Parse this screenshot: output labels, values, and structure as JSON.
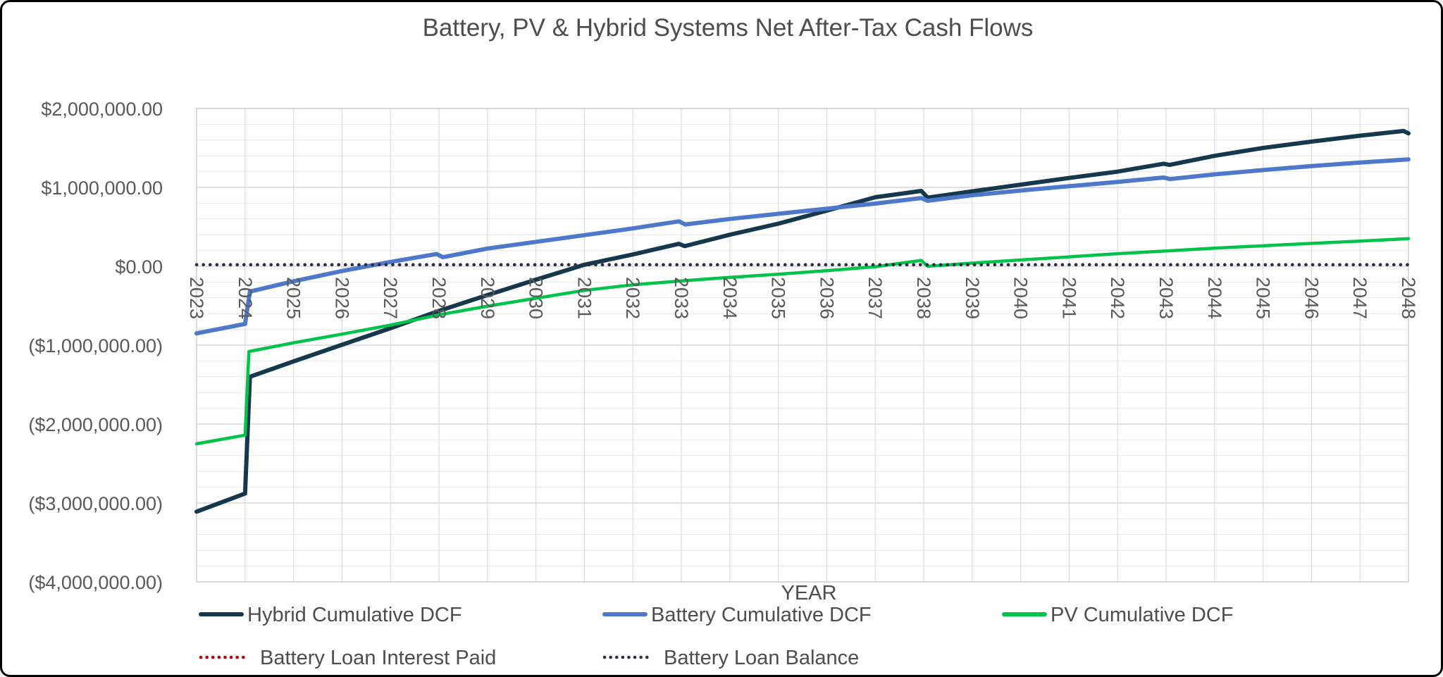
{
  "chart_data": {
    "type": "line",
    "title": "Battery, PV & Hybrid Systems Net After-Tax Cash Flows",
    "xlabel": "YEAR",
    "ylabel": "",
    "ylim": [
      -4000000,
      2000000
    ],
    "y_major_step": 1000000,
    "y_minor_step": 200000,
    "grid": "major-and-minor",
    "legend_position": "bottom",
    "x_ticks": [
      2023,
      2024,
      2025,
      2026,
      2027,
      2028,
      2029,
      2030,
      2031,
      2032,
      2033,
      2034,
      2035,
      2036,
      2037,
      2038,
      2039,
      2040,
      2041,
      2042,
      2043,
      2044,
      2045,
      2046,
      2047,
      2048
    ],
    "y_ticks": [
      {
        "value": 2000000,
        "label": "$2,000,000.00"
      },
      {
        "value": 1000000,
        "label": "$1,000,000.00"
      },
      {
        "value": 0,
        "label": "$0.00"
      },
      {
        "value": -1000000,
        "label": "($1,000,000.00)"
      },
      {
        "value": -2000000,
        "label": "($2,000,000.00)"
      },
      {
        "value": -3000000,
        "label": "($3,000,000.00)"
      },
      {
        "value": -4000000,
        "label": "($4,000,000.00)"
      }
    ],
    "series": [
      {
        "name": "Hybrid Cumulative DCF",
        "color": "#16384C",
        "style": "solid",
        "width": 6,
        "points": [
          [
            2023,
            -3110000
          ],
          [
            2024.0,
            -2880000
          ],
          [
            2024.1,
            -1400000
          ],
          [
            2025,
            -1205000
          ],
          [
            2026,
            -995000
          ],
          [
            2027,
            -785000
          ],
          [
            2028,
            -565000
          ],
          [
            2029,
            -365000
          ],
          [
            2030,
            -170000
          ],
          [
            2031,
            20000
          ],
          [
            2032,
            150000
          ],
          [
            2032.95,
            285000
          ],
          [
            2033.07,
            255000
          ],
          [
            2034,
            400000
          ],
          [
            2035,
            540000
          ],
          [
            2036,
            705000
          ],
          [
            2037,
            875000
          ],
          [
            2037.95,
            955000
          ],
          [
            2038.08,
            870000
          ],
          [
            2039,
            950000
          ],
          [
            2040,
            1035000
          ],
          [
            2041,
            1120000
          ],
          [
            2042,
            1200000
          ],
          [
            2042.95,
            1300000
          ],
          [
            2043.07,
            1285000
          ],
          [
            2044,
            1400000
          ],
          [
            2045,
            1500000
          ],
          [
            2046,
            1580000
          ],
          [
            2047,
            1655000
          ],
          [
            2047.9,
            1715000
          ],
          [
            2048,
            1685000
          ]
        ]
      },
      {
        "name": "Battery Cumulative DCF",
        "color": "#4E79CB",
        "style": "solid",
        "width": 6,
        "points": [
          [
            2023,
            -850000
          ],
          [
            2024.0,
            -730000
          ],
          [
            2024.1,
            -320000
          ],
          [
            2025,
            -190000
          ],
          [
            2026,
            -60000
          ],
          [
            2027,
            55000
          ],
          [
            2027.95,
            155000
          ],
          [
            2028.08,
            115000
          ],
          [
            2029,
            225000
          ],
          [
            2030,
            310000
          ],
          [
            2031,
            395000
          ],
          [
            2032,
            480000
          ],
          [
            2032.95,
            570000
          ],
          [
            2033.08,
            530000
          ],
          [
            2034,
            600000
          ],
          [
            2035,
            665000
          ],
          [
            2036,
            730000
          ],
          [
            2037,
            795000
          ],
          [
            2037.95,
            865000
          ],
          [
            2038.08,
            830000
          ],
          [
            2039,
            900000
          ],
          [
            2040,
            960000
          ],
          [
            2041,
            1015000
          ],
          [
            2042,
            1070000
          ],
          [
            2042.95,
            1125000
          ],
          [
            2043.08,
            1105000
          ],
          [
            2044,
            1165000
          ],
          [
            2045,
            1220000
          ],
          [
            2046,
            1270000
          ],
          [
            2047,
            1315000
          ],
          [
            2048,
            1355000
          ]
        ]
      },
      {
        "name": "PV Cumulative DCF",
        "color": "#00C34A",
        "style": "solid",
        "width": 4.5,
        "points": [
          [
            2023,
            -2250000
          ],
          [
            2024.0,
            -2140000
          ],
          [
            2024.08,
            -1080000
          ],
          [
            2025,
            -970000
          ],
          [
            2026,
            -860000
          ],
          [
            2027,
            -745000
          ],
          [
            2028,
            -615000
          ],
          [
            2029,
            -505000
          ],
          [
            2030,
            -405000
          ],
          [
            2031,
            -305000
          ],
          [
            2032,
            -235000
          ],
          [
            2033,
            -185000
          ],
          [
            2034,
            -140000
          ],
          [
            2035,
            -100000
          ],
          [
            2036,
            -55000
          ],
          [
            2037,
            -5000
          ],
          [
            2037.95,
            75000
          ],
          [
            2038.08,
            0
          ],
          [
            2039,
            40000
          ],
          [
            2040,
            80000
          ],
          [
            2041,
            120000
          ],
          [
            2042,
            160000
          ],
          [
            2043,
            195000
          ],
          [
            2044,
            230000
          ],
          [
            2045,
            260000
          ],
          [
            2046,
            290000
          ],
          [
            2047,
            320000
          ],
          [
            2048,
            350000
          ]
        ]
      },
      {
        "name": "Battery Loan Interest Paid",
        "color": "#C00000",
        "style": "dotted",
        "width": 4.5,
        "points": [
          [
            2023,
            20000
          ],
          [
            2048,
            20000
          ]
        ]
      },
      {
        "name": "Battery Loan Balance",
        "color": "#26304A",
        "style": "dotted",
        "width": 4.5,
        "points": [
          [
            2023,
            20000
          ],
          [
            2048,
            20000
          ]
        ]
      }
    ],
    "legend_rows": [
      [
        "Hybrid Cumulative DCF",
        "Battery Cumulative DCF",
        "PV Cumulative DCF"
      ],
      [
        "Battery Loan Interest Paid",
        "Battery Loan Balance"
      ]
    ]
  }
}
